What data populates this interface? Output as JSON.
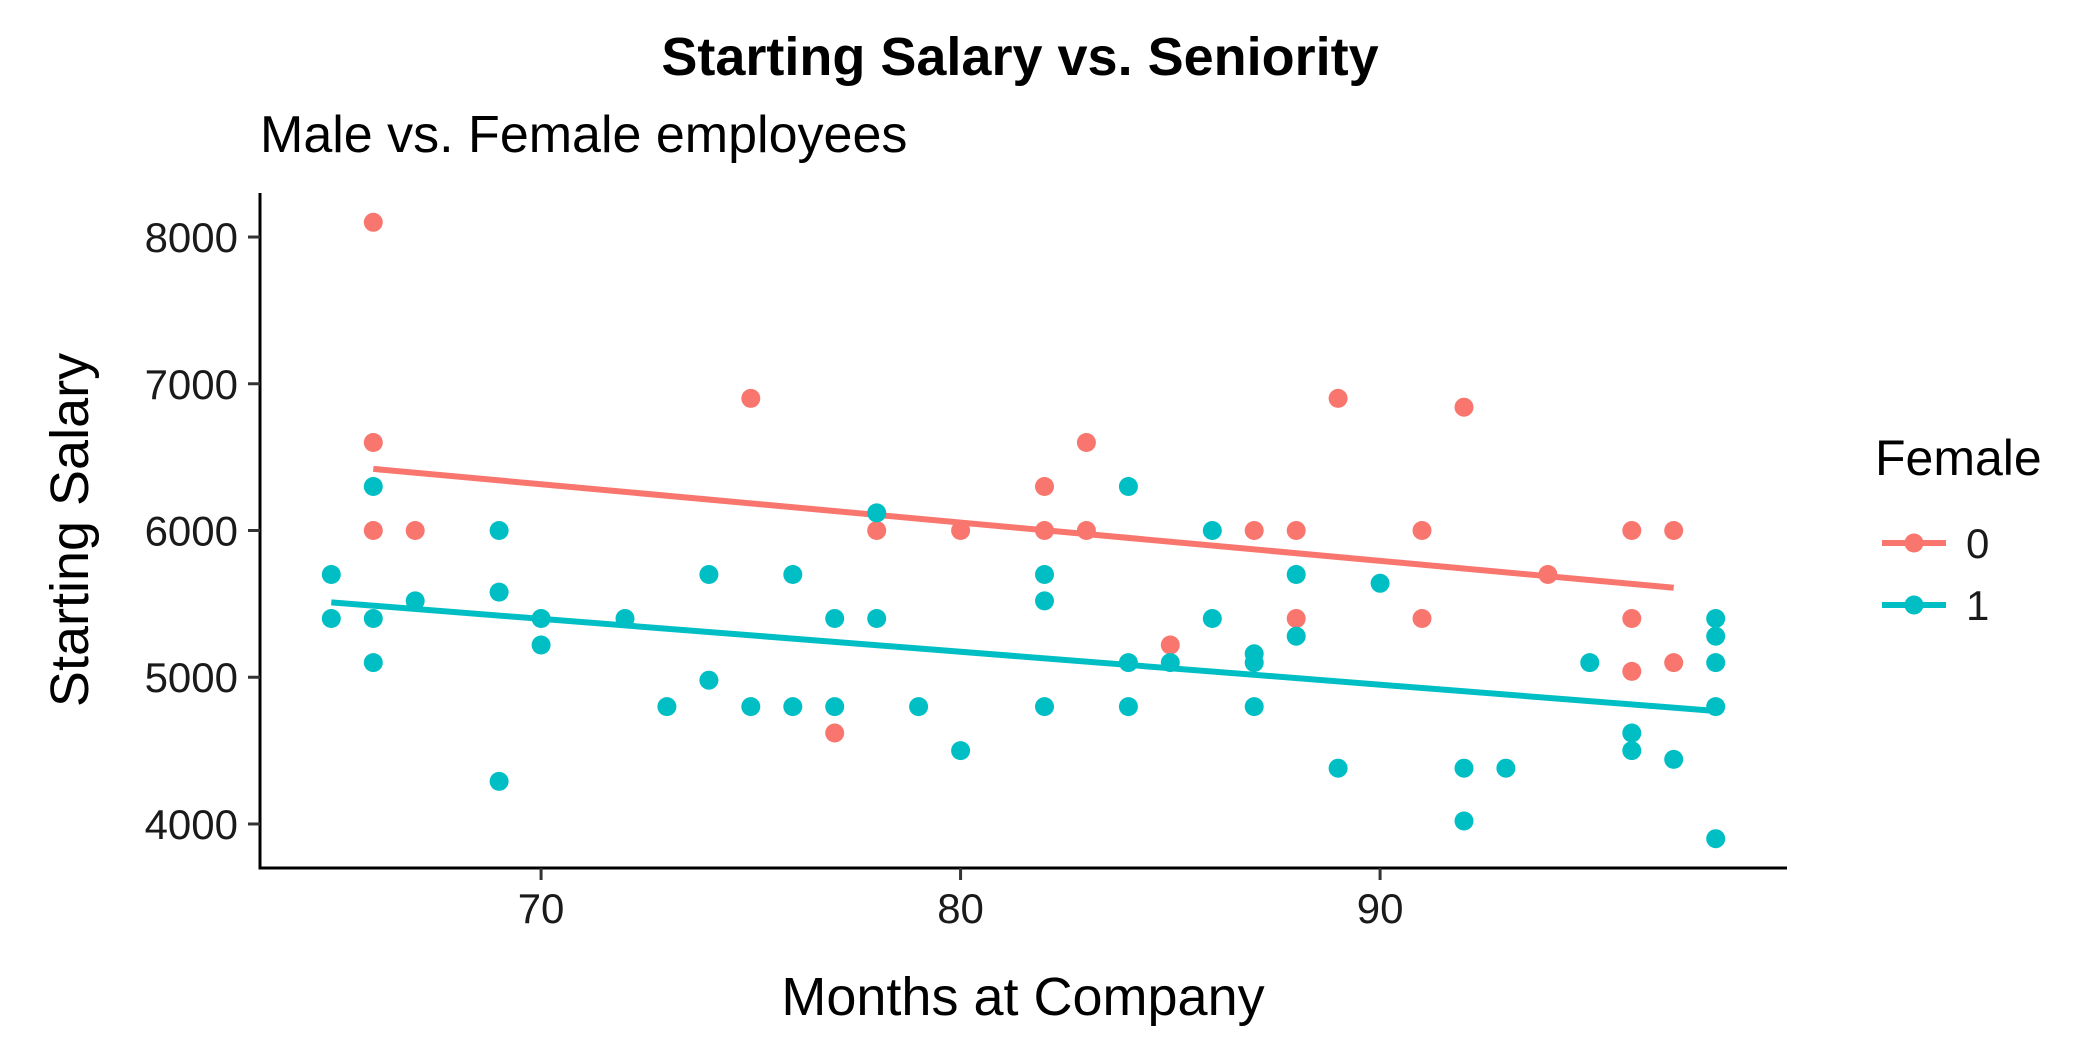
{
  "chart_data": {
    "type": "scatter",
    "title": "Starting Salary vs. Seniority",
    "subtitle": "Male vs. Female employees",
    "xlabel": "Months at Company",
    "ylabel": "Starting Salary",
    "xlim": [
      63.3,
      99.7
    ],
    "ylim": [
      3700,
      8300
    ],
    "x_ticks": [
      70,
      80,
      90
    ],
    "y_ticks": [
      4000,
      5000,
      6000,
      7000,
      8000
    ],
    "grid": false,
    "legend": {
      "title": "Female",
      "position": "right",
      "entries": [
        "0",
        "1"
      ]
    },
    "series": [
      {
        "name": "0",
        "color": "#F8766D",
        "points": [
          [
            66,
            8100
          ],
          [
            66,
            6600
          ],
          [
            66,
            6000
          ],
          [
            67,
            6000
          ],
          [
            75,
            6900
          ],
          [
            77,
            4620
          ],
          [
            78,
            6000
          ],
          [
            80,
            6000
          ],
          [
            82,
            6300
          ],
          [
            82,
            6000
          ],
          [
            83,
            6600
          ],
          [
            83,
            6000
          ],
          [
            85,
            5220
          ],
          [
            87,
            6000
          ],
          [
            88,
            6000
          ],
          [
            88,
            5400
          ],
          [
            89,
            6900
          ],
          [
            91,
            6000
          ],
          [
            91,
            5400
          ],
          [
            92,
            6840
          ],
          [
            94,
            5700
          ],
          [
            96,
            6000
          ],
          [
            96,
            5400
          ],
          [
            96,
            5040
          ],
          [
            97,
            6000
          ],
          [
            97,
            5100
          ]
        ],
        "fit": [
          [
            66,
            6420
          ],
          [
            97,
            5610
          ]
        ]
      },
      {
        "name": "1",
        "color": "#00BFC4",
        "points": [
          [
            65,
            5700
          ],
          [
            65,
            5400
          ],
          [
            66,
            6300
          ],
          [
            66,
            5400
          ],
          [
            66,
            5100
          ],
          [
            67,
            5520
          ],
          [
            69,
            6000
          ],
          [
            69,
            5580
          ],
          [
            69,
            4290
          ],
          [
            70,
            5400
          ],
          [
            70,
            5220
          ],
          [
            72,
            5400
          ],
          [
            73,
            4800
          ],
          [
            74,
            5700
          ],
          [
            74,
            4980
          ],
          [
            75,
            4800
          ],
          [
            76,
            5700
          ],
          [
            76,
            4800
          ],
          [
            77,
            5400
          ],
          [
            77,
            4800
          ],
          [
            78,
            6120
          ],
          [
            78,
            5400
          ],
          [
            79,
            4800
          ],
          [
            80,
            4500
          ],
          [
            82,
            5700
          ],
          [
            82,
            5520
          ],
          [
            82,
            4800
          ],
          [
            84,
            6300
          ],
          [
            84,
            5100
          ],
          [
            84,
            4800
          ],
          [
            85,
            5100
          ],
          [
            86,
            6000
          ],
          [
            86,
            5400
          ],
          [
            87,
            5160
          ],
          [
            87,
            5100
          ],
          [
            87,
            4800
          ],
          [
            88,
            5700
          ],
          [
            88,
            5280
          ],
          [
            89,
            4380
          ],
          [
            90,
            5640
          ],
          [
            92,
            4380
          ],
          [
            92,
            4020
          ],
          [
            93,
            4380
          ],
          [
            95,
            5100
          ],
          [
            96,
            4620
          ],
          [
            96,
            4500
          ],
          [
            97,
            4440
          ],
          [
            98,
            5400
          ],
          [
            98,
            5280
          ],
          [
            98,
            5100
          ],
          [
            98,
            4800
          ],
          [
            98,
            3900
          ]
        ],
        "fit": [
          [
            65,
            5510
          ],
          [
            98,
            4770
          ]
        ]
      }
    ]
  }
}
